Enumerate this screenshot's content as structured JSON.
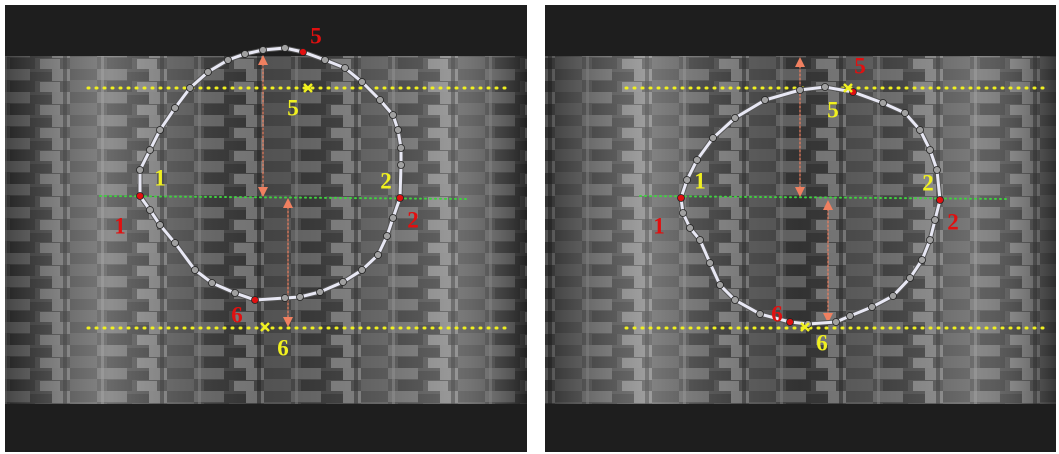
{
  "panels": [
    {
      "red_labels": [
        "1",
        "2",
        "5",
        "6"
      ],
      "yellow_labels": [
        "1",
        "2",
        "5",
        "6"
      ]
    },
    {
      "red_labels": [
        "1",
        "2",
        "5",
        "6"
      ],
      "yellow_labels": [
        "1",
        "2",
        "5",
        "6"
      ]
    }
  ]
}
